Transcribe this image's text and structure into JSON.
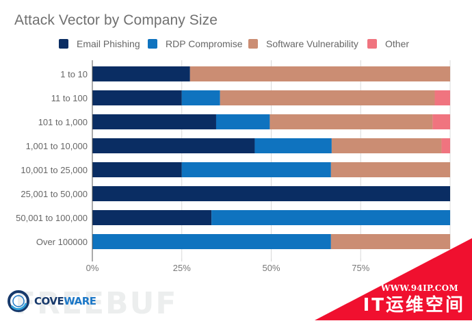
{
  "chart_data": {
    "type": "bar",
    "orientation": "horizontal",
    "stacked": "percent",
    "title": "Attack Vector by Company Size",
    "xlabel": "",
    "ylabel": "",
    "xlim": [
      0,
      100
    ],
    "x_ticks": [
      "0%",
      "25%",
      "50%",
      "75%"
    ],
    "x_tick_values": [
      0,
      25,
      50,
      75
    ],
    "grid": true,
    "legend_position": "top",
    "categories": [
      "1 to 10",
      "11 to 100",
      "101 to 1,000",
      "1,001 to 10,000",
      "10,001 to 25,000",
      "25,001 to 50,000",
      "50,001 to 100,000",
      "Over 100000"
    ],
    "series": [
      {
        "name": "Email Phishing",
        "color": "#0a2d63",
        "values": [
          27.3,
          25.0,
          34.6,
          45.4,
          25.0,
          100.0,
          33.3,
          0.0
        ]
      },
      {
        "name": "RDP Compromise",
        "color": "#0f73bf",
        "values": [
          0.0,
          10.7,
          15.0,
          21.5,
          41.7,
          0.0,
          66.7,
          66.7
        ]
      },
      {
        "name": "Software Vulnerability",
        "color": "#cb8d73",
        "values": [
          72.7,
          60.0,
          45.5,
          30.7,
          33.3,
          0.0,
          0.0,
          33.3
        ]
      },
      {
        "name": "Other",
        "color": "#f0747f",
        "values": [
          0.0,
          4.3,
          4.9,
          2.4,
          0.0,
          0.0,
          0.0,
          0.0
        ]
      }
    ]
  },
  "branding": {
    "logo_part1": "COVE",
    "logo_part2": "WARE",
    "watermark_freebuf": "FREEBUF",
    "watermark_url": "WWW.94IP.COM",
    "watermark_cn": "IT运维空间",
    "watermark_color": "#f0102f"
  }
}
